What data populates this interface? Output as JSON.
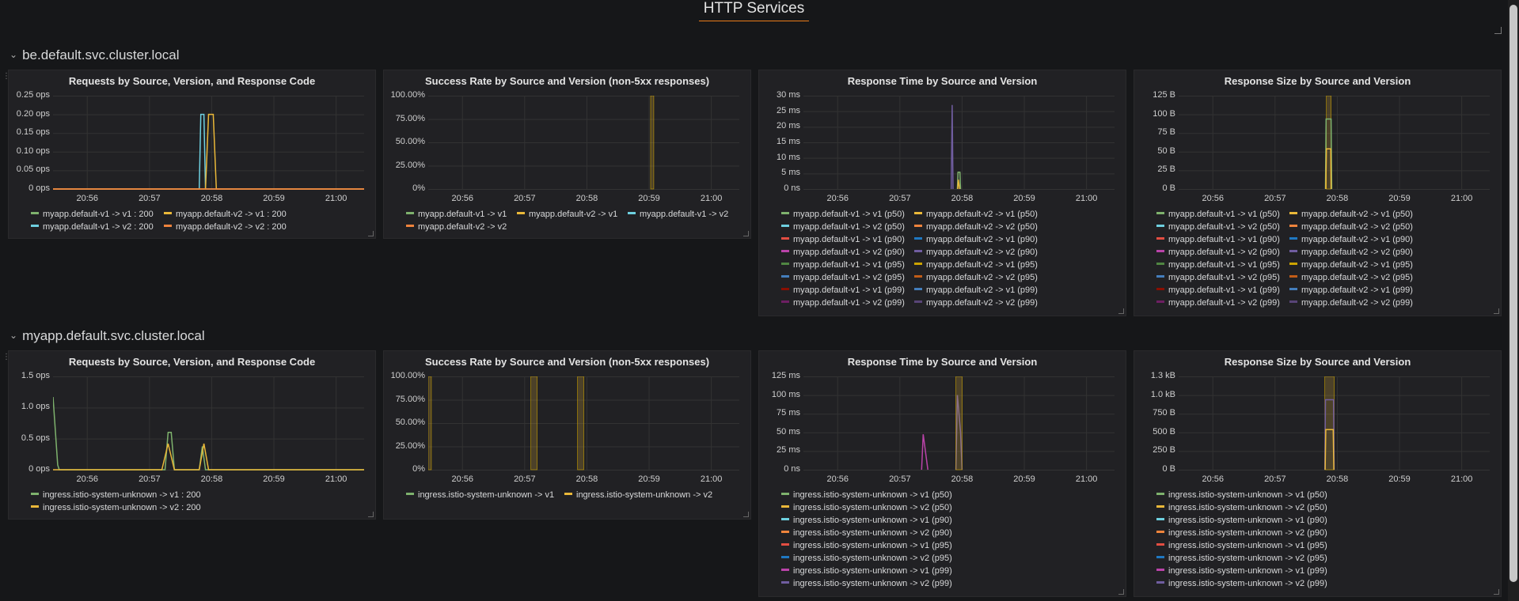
{
  "dashboard_title": "HTTP Services",
  "colors": {
    "green": "#7eb26d",
    "yellow": "#eab839",
    "cyan": "#6ed0e0",
    "orange": "#ef843c",
    "red": "#e24d42",
    "blue": "#1f78c1",
    "magenta": "#ba43a9",
    "purple": "#705da0",
    "dkgreen": "#508642",
    "gold": "#cca300",
    "dkblue": "#447ebc",
    "dkorange": "#c15c17",
    "dkred": "#890f02",
    "plum": "#6d1f62",
    "lavender": "#584477"
  },
  "rows": [
    {
      "title": "be.default.svc.cluster.local",
      "panels": [
        {
          "title": "Requests by Source, Version, and Response Code",
          "y_ticks": [
            "0.25 ops",
            "0.20 ops",
            "0.15 ops",
            "0.10 ops",
            "0.05 ops",
            "0 ops"
          ],
          "x_ticks": [
            "20:56",
            "20:57",
            "20:58",
            "20:59",
            "21:00"
          ],
          "legend_cols": 2,
          "legend": [
            {
              "label": "myapp.default-v1 -> v1 : 200",
              "color": "green"
            },
            {
              "label": "myapp.default-v2 -> v1 : 200",
              "color": "yellow"
            },
            {
              "label": "myapp.default-v1 -> v2 : 200",
              "color": "cyan"
            },
            {
              "label": "myapp.default-v2 -> v2 : 200",
              "color": "orange"
            }
          ]
        },
        {
          "title": "Success Rate by Source and Version (non-5xx responses)",
          "y_ticks": [
            "100.00%",
            "75.00%",
            "50.00%",
            "25.00%",
            "0%"
          ],
          "x_ticks": [
            "20:56",
            "20:57",
            "20:58",
            "20:59",
            "21:00"
          ],
          "legend_cols": 3,
          "legend": [
            {
              "label": "myapp.default-v1 -> v1",
              "color": "green"
            },
            {
              "label": "myapp.default-v2 -> v1",
              "color": "yellow"
            },
            {
              "label": "myapp.default-v1 -> v2",
              "color": "cyan"
            },
            {
              "label": "myapp.default-v2 -> v2",
              "color": "orange"
            }
          ]
        },
        {
          "title": "Response Time by Source and Version",
          "y_ticks": [
            "30 ms",
            "25 ms",
            "20 ms",
            "15 ms",
            "10 ms",
            "5 ms",
            "0 ns"
          ],
          "x_ticks": [
            "20:56",
            "20:57",
            "20:58",
            "20:59",
            "21:00"
          ],
          "legend_cols": 2,
          "legend": [
            {
              "label": "myapp.default-v1 -> v1 (p50)",
              "color": "green"
            },
            {
              "label": "myapp.default-v2 -> v1 (p50)",
              "color": "yellow"
            },
            {
              "label": "myapp.default-v1 -> v2 (p50)",
              "color": "cyan"
            },
            {
              "label": "myapp.default-v2 -> v2 (p50)",
              "color": "orange"
            },
            {
              "label": "myapp.default-v1 -> v1 (p90)",
              "color": "red"
            },
            {
              "label": "myapp.default-v2 -> v1 (p90)",
              "color": "blue"
            },
            {
              "label": "myapp.default-v1 -> v2 (p90)",
              "color": "magenta"
            },
            {
              "label": "myapp.default-v2 -> v2 (p90)",
              "color": "purple"
            },
            {
              "label": "myapp.default-v1 -> v1 (p95)",
              "color": "dkgreen"
            },
            {
              "label": "myapp.default-v2 -> v1 (p95)",
              "color": "gold"
            },
            {
              "label": "myapp.default-v1 -> v2 (p95)",
              "color": "dkblue"
            },
            {
              "label": "myapp.default-v2 -> v2 (p95)",
              "color": "dkorange"
            },
            {
              "label": "myapp.default-v1 -> v1 (p99)",
              "color": "dkred"
            },
            {
              "label": "myapp.default-v2 -> v1 (p99)",
              "color": "dkblue"
            },
            {
              "label": "myapp.default-v1 -> v2 (p99)",
              "color": "plum"
            },
            {
              "label": "myapp.default-v2 -> v2 (p99)",
              "color": "lavender"
            }
          ]
        },
        {
          "title": "Response Size by Source and Version",
          "y_ticks": [
            "125 B",
            "100 B",
            "75 B",
            "50 B",
            "25 B",
            "0 B"
          ],
          "x_ticks": [
            "20:56",
            "20:57",
            "20:58",
            "20:59",
            "21:00"
          ],
          "legend_cols": 2,
          "legend": [
            {
              "label": "myapp.default-v1 -> v1 (p50)",
              "color": "green"
            },
            {
              "label": "myapp.default-v2 -> v1 (p50)",
              "color": "yellow"
            },
            {
              "label": "myapp.default-v1 -> v2 (p50)",
              "color": "cyan"
            },
            {
              "label": "myapp.default-v2 -> v2 (p50)",
              "color": "orange"
            },
            {
              "label": "myapp.default-v1 -> v1 (p90)",
              "color": "red"
            },
            {
              "label": "myapp.default-v2 -> v1 (p90)",
              "color": "blue"
            },
            {
              "label": "myapp.default-v1 -> v2 (p90)",
              "color": "magenta"
            },
            {
              "label": "myapp.default-v2 -> v2 (p90)",
              "color": "purple"
            },
            {
              "label": "myapp.default-v1 -> v1 (p95)",
              "color": "dkgreen"
            },
            {
              "label": "myapp.default-v2 -> v1 (p95)",
              "color": "gold"
            },
            {
              "label": "myapp.default-v1 -> v2 (p95)",
              "color": "dkblue"
            },
            {
              "label": "myapp.default-v2 -> v2 (p95)",
              "color": "dkorange"
            },
            {
              "label": "myapp.default-v1 -> v1 (p99)",
              "color": "dkred"
            },
            {
              "label": "myapp.default-v2 -> v1 (p99)",
              "color": "dkblue"
            },
            {
              "label": "myapp.default-v1 -> v2 (p99)",
              "color": "plum"
            },
            {
              "label": "myapp.default-v2 -> v2 (p99)",
              "color": "lavender"
            }
          ]
        }
      ]
    },
    {
      "title": "myapp.default.svc.cluster.local",
      "panels": [
        {
          "title": "Requests by Source, Version, and Response Code",
          "y_ticks": [
            "1.5 ops",
            "1.0 ops",
            "0.5 ops",
            "0 ops"
          ],
          "x_ticks": [
            "20:56",
            "20:57",
            "20:58",
            "20:59",
            "21:00"
          ],
          "legend_cols": 1,
          "legend": [
            {
              "label": "ingress.istio-system-unknown -> v1 : 200",
              "color": "green"
            },
            {
              "label": "ingress.istio-system-unknown -> v2 : 200",
              "color": "yellow"
            }
          ]
        },
        {
          "title": "Success Rate by Source and Version (non-5xx responses)",
          "y_ticks": [
            "100.00%",
            "75.00%",
            "50.00%",
            "25.00%",
            "0%"
          ],
          "x_ticks": [
            "20:56",
            "20:57",
            "20:58",
            "20:59",
            "21:00"
          ],
          "legend_cols": 2,
          "legend": [
            {
              "label": "ingress.istio-system-unknown -> v1",
              "color": "green"
            },
            {
              "label": "ingress.istio-system-unknown -> v2",
              "color": "yellow"
            }
          ]
        },
        {
          "title": "Response Time by Source and Version",
          "y_ticks": [
            "125 ms",
            "100 ms",
            "75 ms",
            "50 ms",
            "25 ms",
            "0 ns"
          ],
          "x_ticks": [
            "20:56",
            "20:57",
            "20:58",
            "20:59",
            "21:00"
          ],
          "legend_cols": 1,
          "legend": [
            {
              "label": "ingress.istio-system-unknown -> v1 (p50)",
              "color": "green"
            },
            {
              "label": "ingress.istio-system-unknown -> v2 (p50)",
              "color": "yellow"
            },
            {
              "label": "ingress.istio-system-unknown -> v1 (p90)",
              "color": "cyan"
            },
            {
              "label": "ingress.istio-system-unknown -> v2 (p90)",
              "color": "orange"
            },
            {
              "label": "ingress.istio-system-unknown -> v1 (p95)",
              "color": "red"
            },
            {
              "label": "ingress.istio-system-unknown -> v2 (p95)",
              "color": "blue"
            },
            {
              "label": "ingress.istio-system-unknown -> v1 (p99)",
              "color": "magenta"
            },
            {
              "label": "ingress.istio-system-unknown -> v2 (p99)",
              "color": "purple"
            }
          ]
        },
        {
          "title": "Response Size by Source and Version",
          "y_ticks": [
            "1.3 kB",
            "1.0 kB",
            "750 B",
            "500 B",
            "250 B",
            "0 B"
          ],
          "x_ticks": [
            "20:56",
            "20:57",
            "20:58",
            "20:59",
            "21:00"
          ],
          "legend_cols": 1,
          "legend": [
            {
              "label": "ingress.istio-system-unknown -> v1 (p50)",
              "color": "green"
            },
            {
              "label": "ingress.istio-system-unknown -> v2 (p50)",
              "color": "yellow"
            },
            {
              "label": "ingress.istio-system-unknown -> v1 (p90)",
              "color": "cyan"
            },
            {
              "label": "ingress.istio-system-unknown -> v2 (p90)",
              "color": "orange"
            },
            {
              "label": "ingress.istio-system-unknown -> v1 (p95)",
              "color": "red"
            },
            {
              "label": "ingress.istio-system-unknown -> v2 (p95)",
              "color": "blue"
            },
            {
              "label": "ingress.istio-system-unknown -> v1 (p99)",
              "color": "magenta"
            },
            {
              "label": "ingress.istio-system-unknown -> v2 (p99)",
              "color": "purple"
            }
          ]
        }
      ]
    }
  ]
}
